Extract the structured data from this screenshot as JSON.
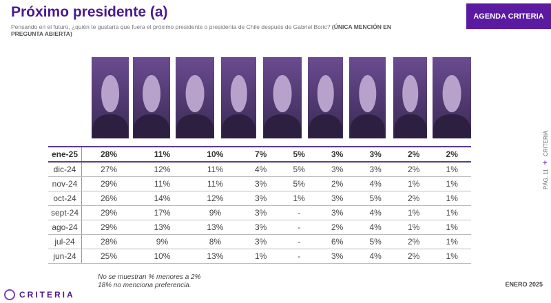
{
  "header": {
    "title": "Próximo presidente (a)",
    "subtitle": "Pensando en el futuro, ¿quién te gustaría que fuera el próximo presidente o presidenta de Chile después de Gabriel Boric?",
    "subtitle_bold": "(ÚNICA MENCIÓN EN PREGUNTA ABIERTA)",
    "badge": "AGENDA CRITERIA"
  },
  "colors": {
    "accent": "#5b1aa0"
  },
  "candidates_count_photos": 9,
  "table": {
    "rows": [
      {
        "label": "ene-25",
        "values": [
          "28%",
          "11%",
          "10%",
          "7%",
          "5%",
          "3%",
          "3%",
          "2%",
          "2%"
        ]
      },
      {
        "label": "dic-24",
        "values": [
          "27%",
          "12%",
          "11%",
          "4%",
          "5%",
          "3%",
          "3%",
          "2%",
          "1%"
        ]
      },
      {
        "label": "nov-24",
        "values": [
          "29%",
          "11%",
          "11%",
          "3%",
          "5%",
          "2%",
          "4%",
          "1%",
          "1%"
        ]
      },
      {
        "label": "oct-24",
        "values": [
          "26%",
          "14%",
          "12%",
          "3%",
          "1%",
          "3%",
          "5%",
          "2%",
          "1%"
        ]
      },
      {
        "label": "sept-24",
        "values": [
          "29%",
          "17%",
          "9%",
          "3%",
          "-",
          "3%",
          "4%",
          "1%",
          "1%"
        ]
      },
      {
        "label": "ago-24",
        "values": [
          "29%",
          "13%",
          "13%",
          "3%",
          "-",
          "2%",
          "4%",
          "1%",
          "1%"
        ]
      },
      {
        "label": "jul-24",
        "values": [
          "28%",
          "9%",
          "8%",
          "3%",
          "-",
          "6%",
          "5%",
          "2%",
          "1%"
        ]
      },
      {
        "label": "jun-24",
        "values": [
          "25%",
          "10%",
          "13%",
          "1%",
          "-",
          "3%",
          "4%",
          "2%",
          "1%"
        ]
      }
    ]
  },
  "notes": [
    "No se muestran % menores a 2%",
    "18% no menciona preferencia."
  ],
  "footer": {
    "logo": "CRITERIA",
    "date": "ENERO 2025",
    "page": "PÁG. 11",
    "side_brand": "CRITERIA"
  }
}
